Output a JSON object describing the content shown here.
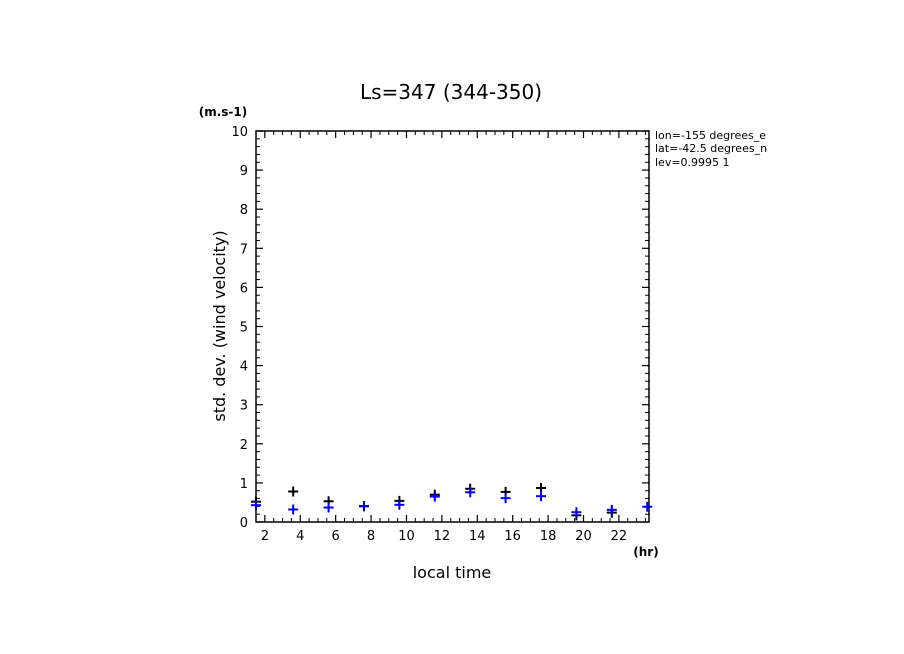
{
  "chart_data": {
    "type": "scatter",
    "title": "Ls=347 (344-350)",
    "ylabel": "std. dev. (wind velocity)",
    "y_unit": "(m.s-1)",
    "xlabel": "local time",
    "x_unit": "(hr)",
    "xlim": [
      1.5,
      23.7
    ],
    "ylim": [
      0,
      10
    ],
    "x_ticks": [
      2,
      4,
      6,
      8,
      10,
      12,
      14,
      16,
      18,
      20,
      22
    ],
    "y_ticks": [
      0,
      1,
      2,
      3,
      4,
      5,
      6,
      7,
      8,
      9,
      10
    ],
    "annotations": [
      "lon=-155 degrees_e",
      "lat=-42.5 degrees_n",
      "lev=0.9995 1"
    ],
    "series": [
      {
        "color": "#000000",
        "marker": "plus",
        "x": [
          1.5,
          3.6,
          5.6,
          7.6,
          9.6,
          11.6,
          13.6,
          15.6,
          17.6,
          19.6,
          21.6
        ],
        "y": [
          0.52,
          0.78,
          0.53,
          0.4,
          0.54,
          0.7,
          0.85,
          0.77,
          0.87,
          0.17,
          0.24
        ]
      },
      {
        "color": "#0000ff",
        "marker": "plus",
        "x": [
          1.5,
          3.6,
          5.6,
          7.6,
          9.6,
          11.6,
          13.6,
          15.6,
          17.6,
          19.6,
          21.6,
          23.6
        ],
        "y": [
          0.43,
          0.32,
          0.37,
          0.41,
          0.44,
          0.65,
          0.76,
          0.61,
          0.66,
          0.25,
          0.31,
          0.39
        ]
      }
    ]
  }
}
